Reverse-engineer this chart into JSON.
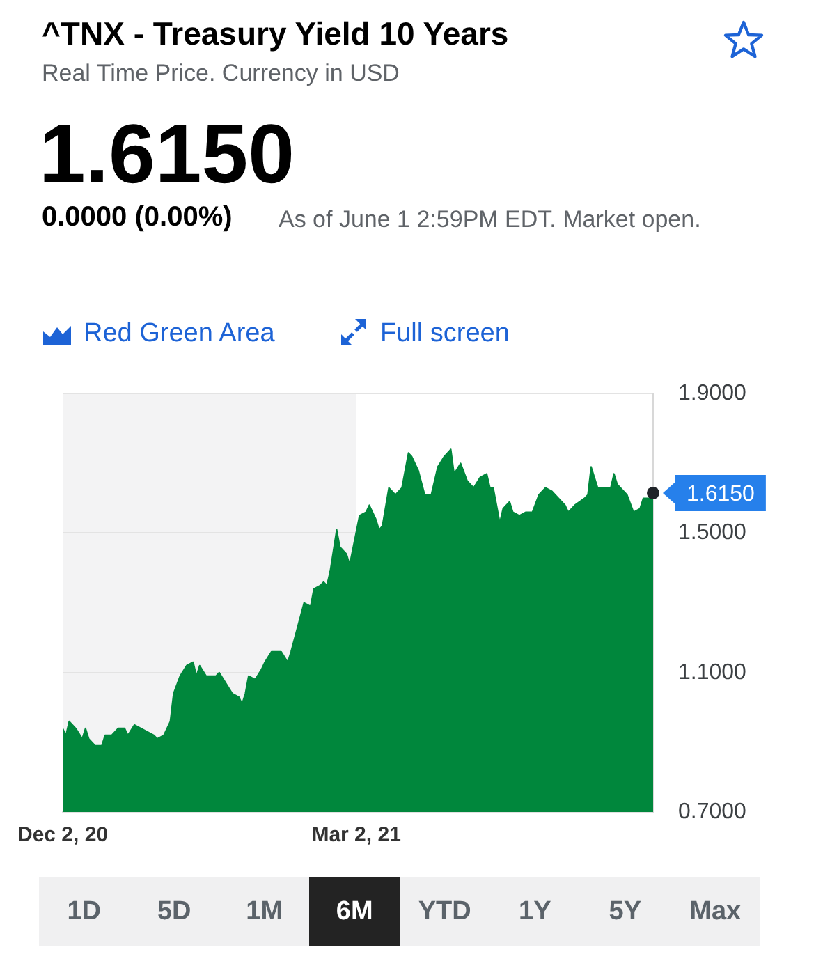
{
  "chart_data": {
    "type": "area",
    "title": "^TNX - Treasury Yield 10 Years",
    "subtitle": "Real Time Price. Currency in USD",
    "annotations": [
      "1.6150",
      "0.0000 (0.00%)",
      "As of June 1 2:59PM EDT. Market open.",
      "Red Green Area",
      "Full screen",
      "1D",
      "5D",
      "1M",
      "6M",
      "YTD",
      "1Y",
      "5Y",
      "Max",
      {
        "text": "1.6150",
        "x": "2021-06-01",
        "y": 1.615
      }
    ],
    "x": [
      "2020-12-02",
      "2020-12-03",
      "2020-12-04",
      "2020-12-06",
      "2020-12-08",
      "2020-12-09",
      "2020-12-10",
      "2020-12-12",
      "2020-12-14",
      "2020-12-15",
      "2020-12-17",
      "2020-12-19",
      "2020-12-21",
      "2020-12-22",
      "2020-12-24",
      "2020-12-26",
      "2020-12-28",
      "2020-12-30",
      "2020-12-31",
      "2021-01-02",
      "2021-01-04",
      "2021-01-05",
      "2021-01-07",
      "2021-01-09",
      "2021-01-11",
      "2021-01-12",
      "2021-01-13",
      "2021-01-15",
      "2021-01-17",
      "2021-01-18",
      "2021-01-19",
      "2021-01-21",
      "2021-01-23",
      "2021-01-25",
      "2021-01-26",
      "2021-01-27",
      "2021-01-28",
      "2021-01-30",
      "2021-02-01",
      "2021-02-02",
      "2021-02-04",
      "2021-02-05",
      "2021-02-07",
      "2021-02-09",
      "2021-02-10",
      "2021-02-12",
      "2021-02-14",
      "2021-02-16",
      "2021-02-17",
      "2021-02-19",
      "2021-02-20",
      "2021-02-21",
      "2021-02-22",
      "2021-02-24",
      "2021-02-25",
      "2021-02-27",
      "2021-02-28",
      "2021-03-03",
      "2021-03-05",
      "2021-03-06",
      "2021-03-08",
      "2021-03-09",
      "2021-03-10",
      "2021-03-12",
      "2021-03-14",
      "2021-03-16",
      "2021-03-18",
      "2021-03-19",
      "2021-03-21",
      "2021-03-23",
      "2021-03-25",
      "2021-03-27",
      "2021-03-29",
      "2021-03-31",
      "2021-04-01",
      "2021-04-03",
      "2021-04-05",
      "2021-04-07",
      "2021-04-09",
      "2021-04-11",
      "2021-04-12",
      "2021-04-13",
      "2021-04-15",
      "2021-04-16",
      "2021-04-18",
      "2021-04-19",
      "2021-04-21",
      "2021-04-23",
      "2021-04-25",
      "2021-04-27",
      "2021-04-29",
      "2021-05-01",
      "2021-05-03",
      "2021-05-05",
      "2021-05-06",
      "2021-05-08",
      "2021-05-11",
      "2021-05-12",
      "2021-05-13",
      "2021-05-14",
      "2021-05-15",
      "2021-05-17",
      "2021-05-19",
      "2021-05-20",
      "2021-05-21",
      "2021-05-23",
      "2021-05-24",
      "2021-05-26",
      "2021-05-28",
      "2021-05-29",
      "2021-05-31",
      "2021-06-01"
    ],
    "values": [
      0.94,
      0.92,
      0.96,
      0.94,
      0.91,
      0.94,
      0.91,
      0.89,
      0.89,
      0.92,
      0.92,
      0.94,
      0.94,
      0.92,
      0.95,
      0.94,
      0.93,
      0.92,
      0.91,
      0.92,
      0.96,
      1.04,
      1.09,
      1.12,
      1.13,
      1.09,
      1.12,
      1.09,
      1.09,
      1.09,
      1.1,
      1.07,
      1.04,
      1.03,
      1.01,
      1.04,
      1.09,
      1.08,
      1.11,
      1.13,
      1.16,
      1.16,
      1.16,
      1.13,
      1.16,
      1.23,
      1.3,
      1.29,
      1.34,
      1.35,
      1.36,
      1.35,
      1.39,
      1.51,
      1.46,
      1.44,
      1.41,
      1.55,
      1.56,
      1.58,
      1.54,
      1.51,
      1.52,
      1.63,
      1.61,
      1.63,
      1.73,
      1.72,
      1.68,
      1.61,
      1.61,
      1.69,
      1.72,
      1.74,
      1.67,
      1.7,
      1.65,
      1.63,
      1.66,
      1.67,
      1.63,
      1.63,
      1.53,
      1.57,
      1.59,
      1.56,
      1.55,
      1.56,
      1.56,
      1.61,
      1.63,
      1.62,
      1.6,
      1.58,
      1.56,
      1.58,
      1.6,
      1.61,
      1.69,
      1.66,
      1.63,
      1.63,
      1.63,
      1.67,
      1.64,
      1.62,
      1.61,
      1.56,
      1.57,
      1.6,
      1.6,
      1.615
    ],
    "color": "#00873c",
    "xlim": [
      "2020-12-02",
      "2021-06-01"
    ],
    "xticks": [
      {
        "value": "2020-12-02",
        "label": "Dec 2, 20"
      },
      {
        "value": "2021-03-02",
        "label": "Mar 2, 21"
      }
    ],
    "ylim": [
      0.7,
      1.9
    ],
    "yticks": [
      {
        "value": 0.7,
        "label": "0.7000"
      },
      {
        "value": 1.1,
        "label": "1.1000"
      },
      {
        "value": 1.5,
        "label": "1.5000"
      },
      {
        "value": 1.9,
        "label": "1.9000"
      }
    ],
    "bands": [
      {
        "axis": "x",
        "from": "2020-12-02",
        "to": "2021-03-02",
        "color": "#f3f3f4"
      }
    ],
    "grid": "y"
  }
}
